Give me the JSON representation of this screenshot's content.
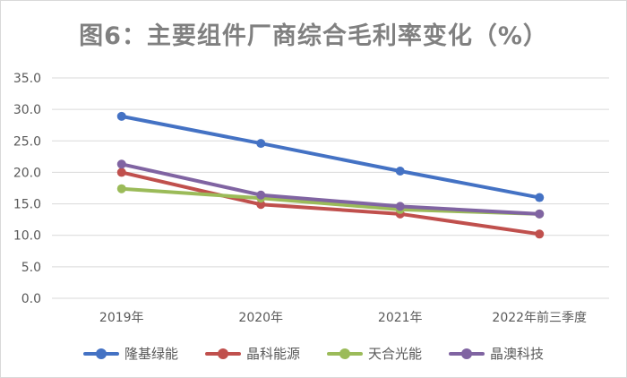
{
  "chart_data": {
    "type": "line",
    "title": "图6：主要组件厂商综合毛利率变化（%）",
    "categories": [
      "2019年",
      "2020年",
      "2021年",
      "2022年前三季度"
    ],
    "ylim": [
      0,
      35
    ],
    "yticks": [
      "0.0",
      "5.0",
      "10.0",
      "15.0",
      "20.0",
      "25.0",
      "30.0",
      "35.0"
    ],
    "grid": true,
    "legend_position": "bottom",
    "series": [
      {
        "name": "隆基绿能",
        "color": "#4472c4",
        "values": [
          28.9,
          24.6,
          20.2,
          16.0
        ]
      },
      {
        "name": "晶科能源",
        "color": "#c0504d",
        "values": [
          20.0,
          14.9,
          13.4,
          10.2
        ]
      },
      {
        "name": "天合光能",
        "color": "#9bbb59",
        "values": [
          17.4,
          15.9,
          14.1,
          13.4
        ]
      },
      {
        "name": "晶澳科技",
        "color": "#8064a2",
        "values": [
          21.3,
          16.4,
          14.6,
          13.4
        ]
      }
    ]
  }
}
